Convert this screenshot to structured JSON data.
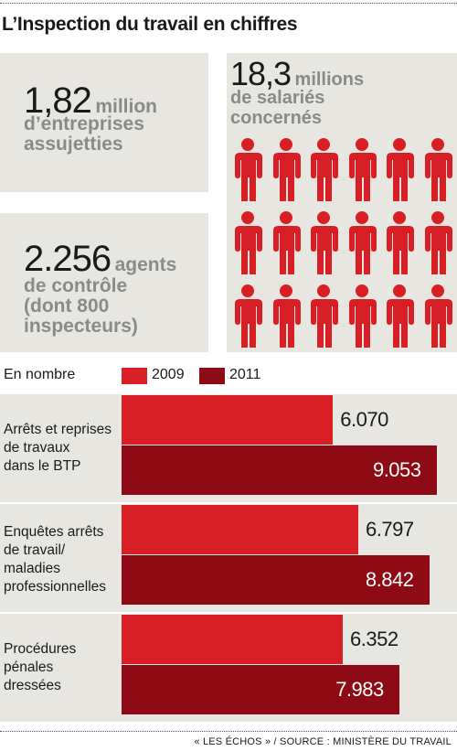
{
  "title": "L’Inspection du travail en chiffres",
  "colors": {
    "y2009": "#d81f26",
    "y2011": "#8e0a14",
    "panel": "#e8e6e0",
    "person": "#d81f26"
  },
  "stats": {
    "companies": {
      "number": "1,82",
      "unit": "million",
      "line2": "d’entreprises",
      "line3": "assujetties"
    },
    "agents": {
      "number": "2.256",
      "unit": "agents",
      "line2": "de contrôle",
      "line3": "(dont 800",
      "line4": "inspecteurs)"
    },
    "employees": {
      "number": "18,3",
      "unit": "millions",
      "line2": "de salariés",
      "line3": "concernés",
      "icon": "person-icon",
      "icon_rows": 3,
      "icon_cols": 6
    }
  },
  "legend": {
    "unit_note": "En nombre",
    "y2009": "2009",
    "y2011": "2011"
  },
  "chart_data": {
    "type": "bar",
    "orientation": "horizontal",
    "categories": [
      "Arrêts et reprises\nde travaux\ndans le BTP",
      "Enquêtes arrêts\nde travail/\nmaladies\nprofessionnelles",
      "Procédures\npénales\ndressées"
    ],
    "series": [
      {
        "name": "2009",
        "values": [
          6070,
          6797,
          6352
        ],
        "labels": [
          "6.070",
          "6.797",
          "6.352"
        ]
      },
      {
        "name": "2011",
        "values": [
          9053,
          8842,
          7983
        ],
        "labels": [
          "9.053",
          "8.842",
          "7.983"
        ]
      }
    ],
    "xlim": [
      0,
      9500
    ],
    "grid": false,
    "legend_position": "top"
  },
  "source": "« LES ÉCHOS » / SOURCE : MINISTÈRE DU TRAVAIL"
}
